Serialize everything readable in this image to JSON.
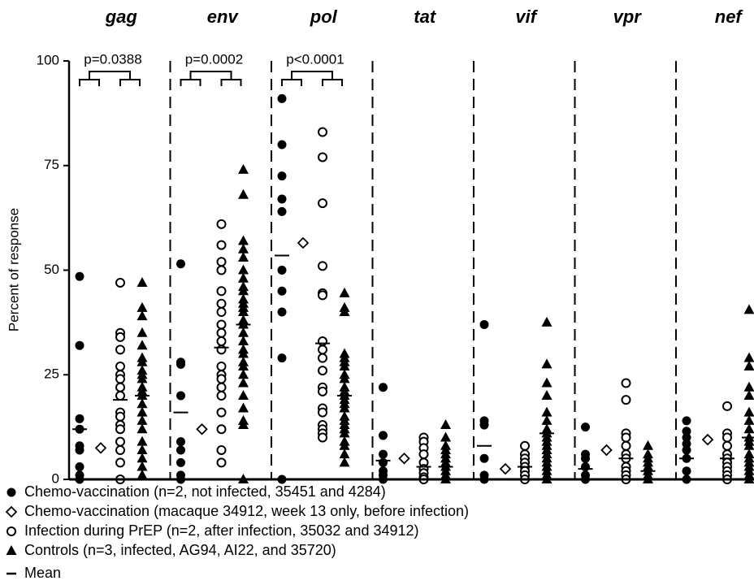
{
  "chart_data": {
    "type": "strip",
    "y_label": "Percent of response",
    "categories": [
      "gag",
      "env",
      "pol",
      "tat",
      "vif",
      "vpr",
      "nef"
    ],
    "ylim": [
      0,
      100
    ],
    "yticks": [
      0,
      25,
      50,
      75,
      100
    ],
    "annotations": [
      {
        "category": 0,
        "text": "p=0.0388"
      },
      {
        "category": 1,
        "text": "p=0.0002"
      },
      {
        "category": 2,
        "text": "p<0.0001"
      }
    ],
    "mean_legend": "Mean",
    "series": [
      {
        "name": "Chemo-vaccination (n=2, not infected, 35451 and 4284)",
        "marker": "circle-filled",
        "color": "#000000",
        "values": [
          [
            48.5,
            32,
            14.5,
            12,
            8,
            7,
            3,
            1,
            0
          ],
          [
            51.5,
            28,
            27.5,
            20,
            9,
            7,
            4,
            1,
            0
          ],
          [
            91,
            80,
            72.5,
            67,
            64,
            50,
            45,
            40,
            29,
            0
          ],
          [
            22,
            10.5,
            6,
            4,
            2,
            1,
            0
          ],
          [
            37,
            14,
            13,
            5,
            1,
            0
          ],
          [
            12.5,
            6,
            5,
            3,
            1,
            0
          ],
          [
            14,
            11.5,
            10,
            8.5,
            7,
            5,
            2,
            0
          ]
        ],
        "means": [
          12,
          16,
          53.5,
          4.5,
          8,
          2.5,
          5
        ]
      },
      {
        "name": "Chemo-vaccination (macaque 34912, week 13 only, before infection)",
        "marker": "diamond-open",
        "color": "#000000",
        "values": [
          [
            7.5
          ],
          [
            12
          ],
          [
            56.5
          ],
          [
            5
          ],
          [
            2.5
          ],
          [
            7
          ],
          [
            9.5
          ]
        ]
      },
      {
        "name": "Infection during PrEP (n=2, after infection, 35032 and 34912)",
        "marker": "circle-open",
        "color": "#000000",
        "values": [
          [
            47,
            35,
            34,
            31,
            27,
            25,
            24,
            22,
            20,
            16,
            15,
            13,
            12,
            9,
            7,
            4,
            0
          ],
          [
            61,
            56,
            52,
            50,
            45,
            42,
            40,
            37,
            35,
            33,
            31,
            27,
            25,
            24,
            22,
            20,
            16,
            12,
            7,
            4
          ],
          [
            83,
            77,
            66,
            51,
            44.5,
            44,
            33,
            31,
            29,
            26,
            22,
            21,
            17,
            16,
            13,
            12,
            11,
            10
          ],
          [
            10,
            9,
            7.5,
            6,
            4,
            2.5,
            1.5,
            0.5,
            0
          ],
          [
            8,
            6,
            5,
            4,
            3,
            2,
            1,
            0
          ],
          [
            23,
            19,
            11,
            10,
            8,
            6,
            5,
            3,
            2,
            1,
            0
          ],
          [
            17.5,
            11,
            10,
            8,
            6,
            5,
            4,
            3,
            2,
            1,
            0
          ]
        ],
        "means": [
          19,
          31.5,
          32.5,
          3,
          3,
          5,
          5
        ]
      },
      {
        "name": "Controls (n=3, infected, AG94, AI22, and 35720)",
        "marker": "triangle-filled",
        "color": "#000000",
        "values": [
          [
            47,
            41,
            39,
            35,
            32,
            29,
            28,
            26,
            25,
            24,
            22,
            21,
            20,
            18,
            16,
            14,
            12,
            9,
            7,
            5,
            3,
            1
          ],
          [
            74,
            68,
            57,
            55,
            53,
            50,
            48,
            46,
            45,
            43,
            42,
            41,
            40,
            38,
            37,
            35,
            33,
            31,
            30,
            28,
            27,
            25,
            23,
            20,
            17,
            14,
            13,
            0
          ],
          [
            44.5,
            41,
            40,
            30,
            29,
            28,
            27,
            25,
            24,
            22,
            21,
            20,
            19,
            18,
            17,
            15,
            14,
            13,
            12,
            11,
            9,
            8,
            6,
            4
          ],
          [
            13,
            10,
            8,
            7,
            6,
            5,
            4,
            3,
            2,
            1,
            0
          ],
          [
            37.5,
            27.5,
            23,
            20,
            16,
            14,
            12,
            11,
            10,
            9,
            8,
            7,
            6,
            5,
            4,
            3,
            2,
            1,
            0
          ],
          [
            8,
            6,
            5,
            4,
            3,
            2,
            1,
            0
          ],
          [
            40.5,
            29,
            27,
            22,
            20,
            16,
            14,
            12,
            10,
            9,
            8,
            6,
            5,
            4,
            3,
            2,
            1,
            0
          ]
        ],
        "means": [
          20,
          37,
          20,
          3,
          11,
          2,
          10
        ]
      }
    ]
  }
}
